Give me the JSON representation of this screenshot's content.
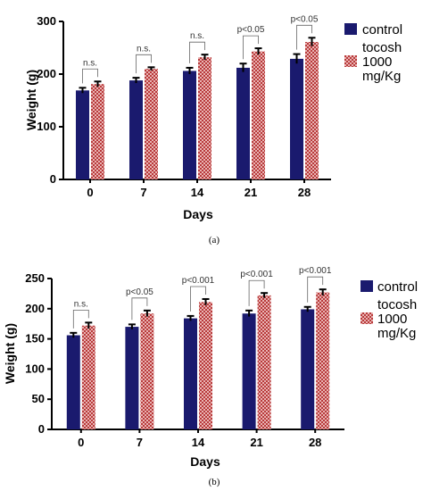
{
  "chart_data": [
    {
      "type": "bar",
      "panel_label": "(a)",
      "categories": [
        "0",
        "7",
        "14",
        "21",
        "28"
      ],
      "series": [
        {
          "name": "control",
          "values": [
            169,
            188,
            206,
            212,
            229
          ],
          "errors": [
            5,
            5,
            6,
            8,
            9
          ],
          "color": "#1a1a6e"
        },
        {
          "name": "tocosh 1000 mg/Kg",
          "values": [
            181,
            210,
            232,
            243,
            261
          ],
          "errors": [
            5,
            3,
            5,
            6,
            8
          ],
          "color": "#b83a3a"
        }
      ],
      "significance": [
        "n.s.",
        "n.s.",
        "n.s.",
        "p<0.05",
        "p<0.05"
      ],
      "xlabel": "Days",
      "ylabel": "Weight (g)",
      "ylim": [
        0,
        300
      ],
      "yticks": [
        0,
        100,
        200,
        300
      ],
      "legend_position": "right"
    },
    {
      "type": "bar",
      "panel_label": "(b)",
      "categories": [
        "0",
        "7",
        "14",
        "21",
        "28"
      ],
      "series": [
        {
          "name": "control",
          "values": [
            156,
            170,
            184,
            192,
            199
          ],
          "errors": [
            4,
            4,
            4,
            5,
            4
          ],
          "color": "#1a1a6e"
        },
        {
          "name": "tocosh 1000 mg/Kg",
          "values": [
            172,
            192,
            211,
            222,
            227
          ],
          "errors": [
            5,
            5,
            5,
            4,
            5
          ],
          "color": "#b83a3a"
        }
      ],
      "significance": [
        "n.s.",
        "p<0.05",
        "p<0.001",
        "p<0.001",
        "p<0.001"
      ],
      "xlabel": "Days",
      "ylabel": "Weight (g)",
      "ylim": [
        0,
        250
      ],
      "yticks": [
        0,
        50,
        100,
        150,
        200,
        250
      ],
      "legend_position": "right"
    }
  ],
  "legend": {
    "control_label": "control",
    "treat_line1": "tocosh",
    "treat_line2": "1000",
    "treat_line3": "mg/Kg"
  }
}
